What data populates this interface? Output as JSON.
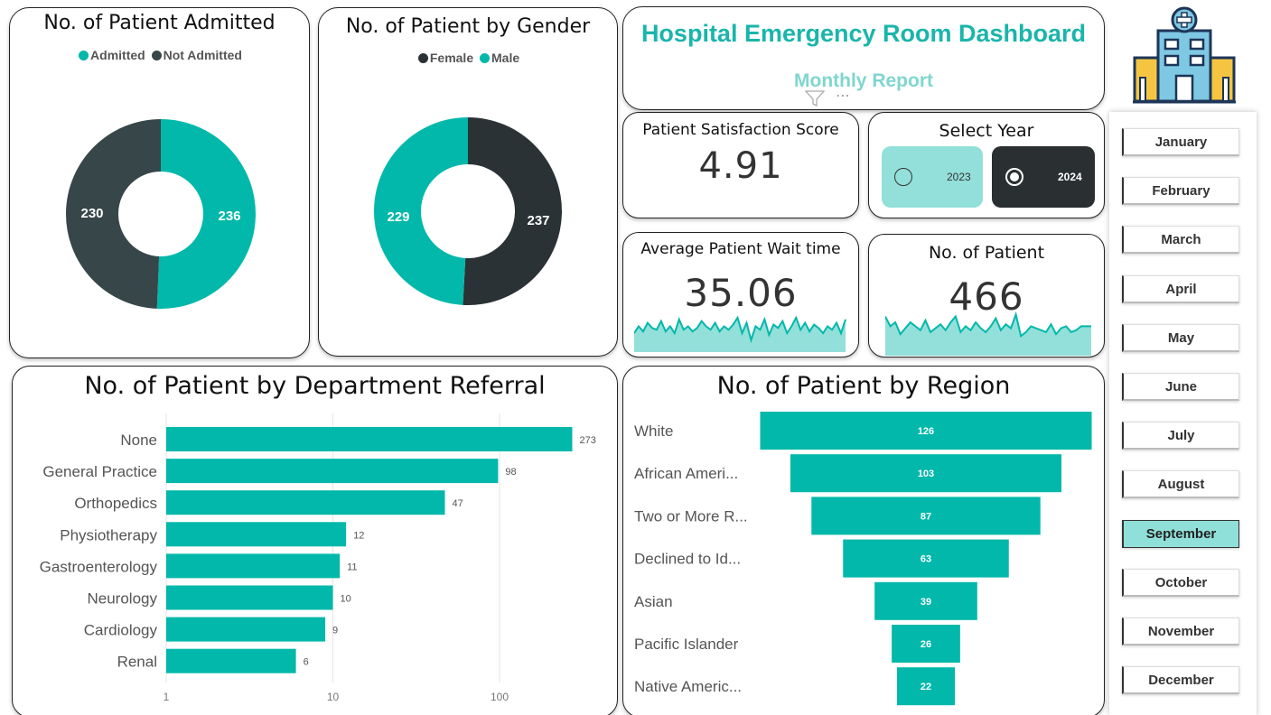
{
  "header": {
    "title": "Hospital Emergency Room Dashboard",
    "subtitle": "Monthly Report"
  },
  "colors": {
    "teal": "#01b8aa",
    "dark": "#374649",
    "darker": "#2a3235",
    "lightTeal": "#93e0da"
  },
  "icons": {
    "logo": "hospital-building-icon",
    "filter": "filter-icon",
    "more": "more-options-icon"
  },
  "admitted_card": {
    "title": "No. of Patient Admitted",
    "legend": [
      "Admitted",
      "Not Admitted"
    ]
  },
  "gender_card": {
    "title": "No. of Patient by Gender",
    "legend": [
      "Female",
      "Male"
    ]
  },
  "satisfaction": {
    "title": "Patient Satisfaction Score",
    "value": "4.91"
  },
  "wait_time": {
    "title": "Average Patient Wait time",
    "value": "35.06"
  },
  "patients": {
    "title": "No. of Patient",
    "value": "466"
  },
  "year_select": {
    "title": "Select Year",
    "options": [
      {
        "label": "2023",
        "selected": false
      },
      {
        "label": "2024",
        "selected": true
      }
    ]
  },
  "months": [
    {
      "label": "January",
      "selected": false
    },
    {
      "label": "February",
      "selected": false
    },
    {
      "label": "March",
      "selected": false
    },
    {
      "label": "April",
      "selected": false
    },
    {
      "label": "May",
      "selected": false
    },
    {
      "label": "June",
      "selected": false
    },
    {
      "label": "July",
      "selected": false
    },
    {
      "label": "August",
      "selected": false
    },
    {
      "label": "September",
      "selected": true
    },
    {
      "label": "October",
      "selected": false
    },
    {
      "label": "November",
      "selected": false
    },
    {
      "label": "December",
      "selected": false
    }
  ],
  "department_card": {
    "title": "No. of Patient by Department Referral"
  },
  "region_card": {
    "title": "No. of Patient by Region"
  },
  "chart_data": [
    {
      "type": "pie",
      "variant": "donut",
      "title": "No. of Patient Admitted",
      "categories": [
        "Admitted",
        "Not Admitted"
      ],
      "values": [
        236,
        230
      ],
      "colors": [
        "#01b8aa",
        "#374649"
      ]
    },
    {
      "type": "pie",
      "variant": "donut",
      "title": "No. of Patient by Gender",
      "categories": [
        "Female",
        "Male"
      ],
      "values": [
        237,
        229
      ],
      "colors": [
        "#2a3235",
        "#01b8aa"
      ]
    },
    {
      "type": "bar",
      "orientation": "horizontal",
      "title": "No. of Patient by Department Referral",
      "categories": [
        "None",
        "General Practice",
        "Orthopedics",
        "Physiotherapy",
        "Gastroenterology",
        "Neurology",
        "Cardiology",
        "Renal"
      ],
      "values": [
        273,
        98,
        47,
        12,
        11,
        10,
        9,
        6
      ],
      "x_scale": "log",
      "xlim": [
        1,
        300
      ],
      "x_ticks": [
        "1",
        "10",
        "100"
      ],
      "grid": true
    },
    {
      "type": "bar",
      "variant": "funnel",
      "title": "No. of Patient by Region",
      "categories": [
        "White",
        "African Ameri...",
        "Two or More R...",
        "Declined to Id...",
        "Asian",
        "Pacific Islander",
        "Native Americ..."
      ],
      "values": [
        126,
        103,
        87,
        63,
        39,
        26,
        22
      ]
    },
    {
      "type": "area",
      "title": "Average Patient Wait time",
      "values": [
        22,
        30,
        24,
        34,
        28,
        26,
        36,
        24,
        30,
        22,
        38,
        26,
        30,
        24,
        28,
        36,
        30,
        26,
        34,
        24,
        30,
        26,
        32,
        40,
        22,
        34,
        14,
        30,
        26,
        38,
        20,
        32,
        28,
        36,
        22,
        30,
        40,
        26,
        34,
        24,
        32,
        28,
        22,
        30,
        26,
        34,
        22,
        38
      ]
    },
    {
      "type": "area",
      "title": "No. of Patient",
      "values": [
        40,
        30,
        34,
        22,
        28,
        34,
        30,
        26,
        36,
        24,
        28,
        32,
        26,
        34,
        40,
        24,
        30,
        26,
        34,
        28,
        24,
        30,
        38,
        26,
        32,
        28,
        42,
        20,
        24,
        30,
        28,
        26,
        24,
        32,
        22,
        28,
        30,
        24,
        26,
        30,
        30,
        30
      ]
    }
  ]
}
